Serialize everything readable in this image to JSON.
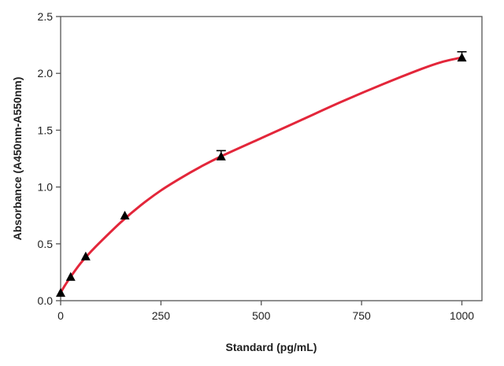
{
  "chart_data": {
    "type": "scatter",
    "title": "",
    "xlabel": "Standard (pg/mL)",
    "ylabel": "Absorbance (A450nm-A550nm)",
    "xlim": [
      0,
      1050
    ],
    "ylim": [
      0,
      2.5
    ],
    "x_ticks": [
      0,
      250,
      500,
      750,
      1000
    ],
    "y_ticks": [
      0.0,
      0.5,
      1.0,
      1.5,
      2.0,
      2.5
    ],
    "x_tick_labels": [
      "0",
      "250",
      "500",
      "750",
      "1000"
    ],
    "y_tick_labels": [
      "0.0",
      "0.5",
      "1.0",
      "1.5",
      "2.0",
      "2.5"
    ],
    "grid": false,
    "legend": "none",
    "points": [
      {
        "x": 0,
        "y": 0.07,
        "err": 0
      },
      {
        "x": 25,
        "y": 0.21,
        "err": 0
      },
      {
        "x": 62.5,
        "y": 0.39,
        "err": 0
      },
      {
        "x": 160,
        "y": 0.75,
        "err": 0
      },
      {
        "x": 400,
        "y": 1.27,
        "err": 0.05
      },
      {
        "x": 1000,
        "y": 2.14,
        "err": 0.05
      }
    ],
    "curve": {
      "x": [
        0,
        10,
        25,
        50,
        75,
        100,
        150,
        200,
        250,
        300,
        350,
        400,
        500,
        600,
        700,
        800,
        900,
        950,
        1000
      ],
      "y": [
        0.07,
        0.13,
        0.21,
        0.33,
        0.43,
        0.52,
        0.69,
        0.84,
        0.97,
        1.08,
        1.18,
        1.27,
        1.43,
        1.59,
        1.75,
        1.9,
        2.04,
        2.1,
        2.14
      ]
    },
    "colors": {
      "curve": "#e3263a",
      "marker": "#000000",
      "axis": "#555555",
      "text": "#1f1f1f"
    }
  }
}
